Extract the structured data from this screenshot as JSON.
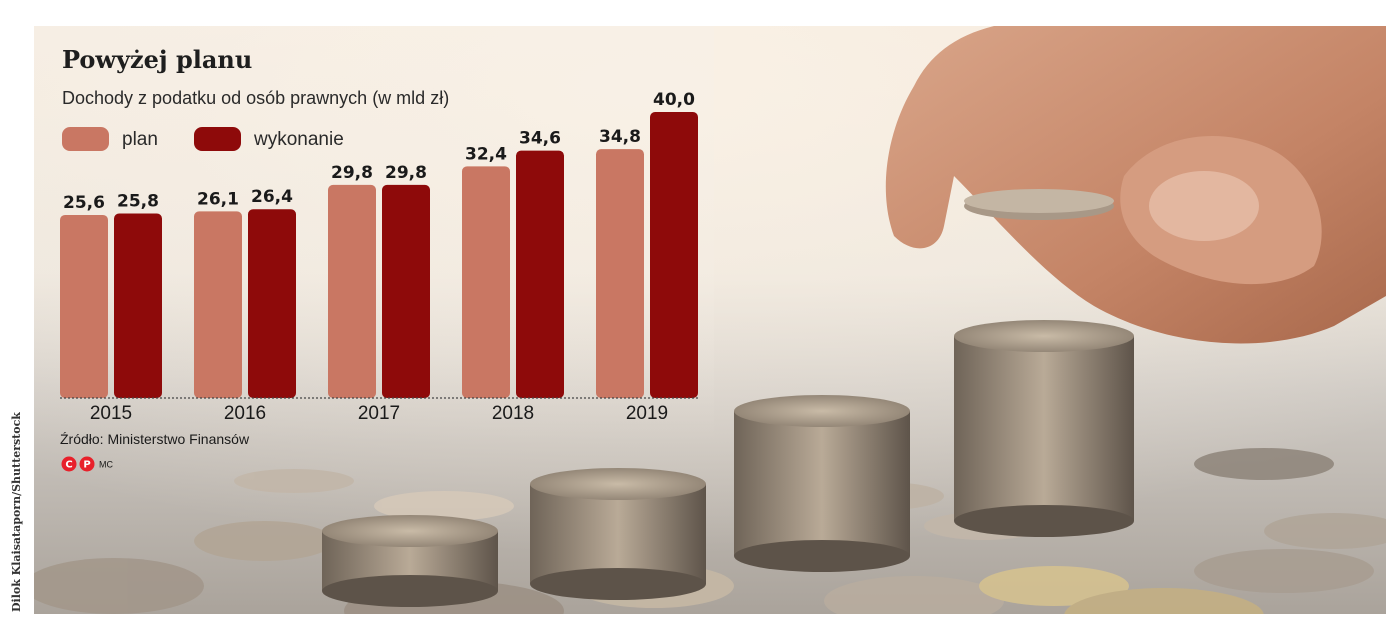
{
  "photo_credit": "Dilok Klaisataporn/Shutterstock",
  "source": "Źródło: Ministerstwo Finansów",
  "signature": "MC",
  "logo": {
    "letters": [
      "C",
      "P"
    ],
    "color": "#e8202a"
  },
  "colors": {
    "plan": "#c97763",
    "wykonanie": "#8e0a0a"
  },
  "chart_data": {
    "type": "bar",
    "title": "Powyżej planu",
    "subtitle": "Dochody z podatku od osób prawnych (w mld zł)",
    "categories": [
      "2015",
      "2016",
      "2017",
      "2018",
      "2019"
    ],
    "series": [
      {
        "name": "plan",
        "values": [
          25.6,
          26.1,
          29.8,
          32.4,
          34.8
        ],
        "labels": [
          "25,6",
          "26,1",
          "29,8",
          "32,4",
          "34,8"
        ]
      },
      {
        "name": "wykonanie",
        "values": [
          25.8,
          26.4,
          29.8,
          34.6,
          40.0
        ],
        "labels": [
          "25,8",
          "26,4",
          "29,8",
          "34,6",
          "40,0"
        ]
      }
    ],
    "ylim": [
      0,
      40
    ],
    "legend": "top-left",
    "grid": false
  }
}
